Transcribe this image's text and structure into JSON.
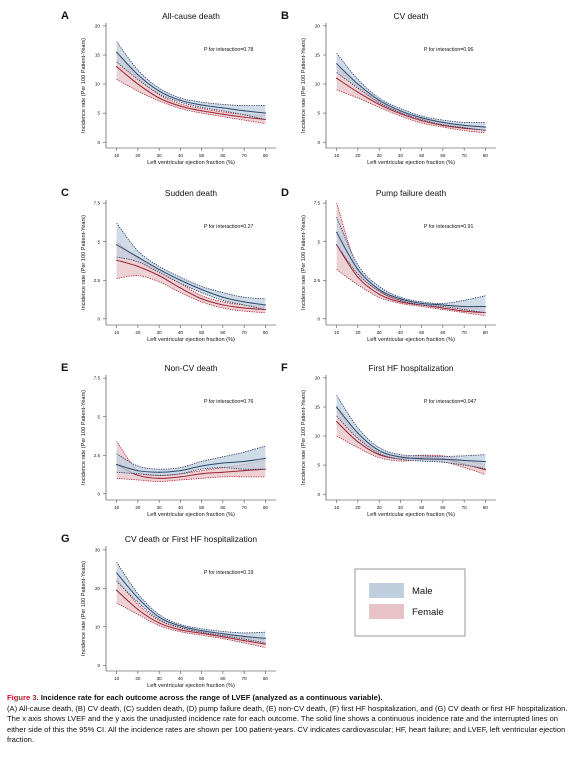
{
  "colors": {
    "male_line": "#2b4a6e",
    "male_band": "#bfcfdd",
    "male_band_edge": "#1f2f5a",
    "female_line": "#9b2332",
    "female_band": "#e7c3c7",
    "female_band_edge": "#b01d2e"
  },
  "legend": {
    "male": "Male",
    "female": "Female"
  },
  "caption": {
    "label": "Figure 3.",
    "title": "Incidence rate for each outcome across the range of LVEF (analyzed as a continuous variable).",
    "body": "(A) All-cause death, (B) CV death, (C) sudden death, (D) pump failure death, (E) non-CV death, (F) first HF hospitalization, and (G) CV death or first HF hospitalization. The x axis shows LVEF and the y axis the unadjusted incidence rate for each outcome. The solid line shows a continuous incidence rate and the interrupted lines on either side of this the 95% CI. All the incidence rates are shown per 100 patient-years. CV indicates cardiovascular; HF, heart failure; and LVEF, left ventricular ejection fraction."
  },
  "chart_data": [
    {
      "type": "area",
      "panel": "A",
      "title": "All-cause death",
      "xlabel": "Left ventricular ejection fraction (%)",
      "ylabel": "Incidence rate (Per 100 Patient-Years)",
      "annotation": "P for interaction=0.78",
      "xlim": [
        5,
        85
      ],
      "ylim": [
        -1,
        20.5
      ],
      "xticks": [
        10,
        20,
        30,
        40,
        50,
        60,
        70,
        80
      ],
      "yticks": [
        0,
        5,
        10,
        15,
        20
      ],
      "x": [
        10,
        20,
        30,
        40,
        50,
        60,
        70,
        80
      ],
      "series": [
        {
          "name": "Male",
          "values": [
            15.5,
            11.6,
            8.8,
            7.2,
            6.4,
            5.9,
            5.4,
            5.0
          ],
          "lower": [
            13.8,
            10.8,
            8.3,
            6.9,
            6.0,
            5.4,
            4.7,
            3.9
          ],
          "upper": [
            17.3,
            12.4,
            9.3,
            7.6,
            6.9,
            6.5,
            6.3,
            6.3
          ]
        },
        {
          "name": "Female",
          "values": [
            13.0,
            10.0,
            7.6,
            6.2,
            5.4,
            4.8,
            4.3,
            3.9
          ],
          "lower": [
            10.8,
            8.8,
            7.1,
            5.8,
            5.0,
            4.4,
            3.8,
            3.2
          ],
          "upper": [
            15.5,
            11.2,
            8.2,
            6.6,
            5.8,
            5.2,
            4.8,
            4.6
          ]
        }
      ]
    },
    {
      "type": "area",
      "panel": "B",
      "title": "CV death",
      "xlabel": "Left ventricular ejection fraction (%)",
      "ylabel": "Incidence rate (Per 100 Patient-Years)",
      "annotation": "P for interaction=0.96",
      "xlim": [
        5,
        85
      ],
      "ylim": [
        -1,
        20.5
      ],
      "xticks": [
        10,
        20,
        30,
        40,
        50,
        60,
        70,
        80
      ],
      "yticks": [
        0,
        5,
        10,
        15,
        20
      ],
      "x": [
        10,
        20,
        30,
        40,
        50,
        60,
        70,
        80
      ],
      "series": [
        {
          "name": "Male",
          "values": [
            13.5,
            10.0,
            7.2,
            5.4,
            4.2,
            3.4,
            2.9,
            2.6
          ],
          "lower": [
            12.0,
            9.3,
            6.8,
            5.1,
            3.9,
            3.0,
            2.5,
            2.0
          ],
          "upper": [
            15.3,
            10.8,
            7.6,
            5.8,
            4.5,
            3.8,
            3.4,
            3.4
          ]
        },
        {
          "name": "Female",
          "values": [
            11.0,
            8.6,
            6.5,
            4.9,
            3.7,
            2.9,
            2.4,
            2.1
          ],
          "lower": [
            9.0,
            7.6,
            6.0,
            4.5,
            3.3,
            2.6,
            2.0,
            1.6
          ],
          "upper": [
            13.0,
            9.6,
            7.0,
            5.3,
            4.1,
            3.3,
            2.9,
            2.7
          ]
        }
      ]
    },
    {
      "type": "area",
      "panel": "C",
      "title": "Sudden death",
      "xlabel": "Left ventricular ejection fraction (%)",
      "ylabel": "Incidence rate (Per 100 Patient-Years)",
      "annotation": "P for interaction=0.27",
      "xlim": [
        5,
        85
      ],
      "ylim": [
        -0.4,
        7.7
      ],
      "xticks": [
        10,
        20,
        30,
        40,
        50,
        60,
        70,
        80
      ],
      "yticks": [
        0,
        2.5,
        5,
        7.5
      ],
      "x": [
        10,
        20,
        30,
        40,
        50,
        60,
        70,
        80
      ],
      "series": [
        {
          "name": "Male",
          "values": [
            4.8,
            4.0,
            3.2,
            2.5,
            1.9,
            1.4,
            1.1,
            0.9
          ],
          "lower": [
            4.0,
            3.7,
            3.0,
            2.3,
            1.7,
            1.2,
            0.9,
            0.6
          ],
          "upper": [
            6.2,
            4.4,
            3.4,
            2.7,
            2.1,
            1.7,
            1.4,
            1.3
          ]
        },
        {
          "name": "Female",
          "values": [
            3.8,
            3.4,
            2.8,
            2.0,
            1.3,
            0.9,
            0.7,
            0.6
          ],
          "lower": [
            2.6,
            2.8,
            2.4,
            1.7,
            1.1,
            0.7,
            0.5,
            0.4
          ],
          "upper": [
            5.0,
            3.9,
            3.1,
            2.3,
            1.5,
            1.1,
            0.9,
            0.8
          ]
        }
      ]
    },
    {
      "type": "area",
      "panel": "D",
      "title": "Pump failure death",
      "xlabel": "Left ventricular ejection fraction (%)",
      "ylabel": "Incidence rate (Per 100 Patient-Years)",
      "annotation": "P for interaction=0.91",
      "xlim": [
        5,
        85
      ],
      "ylim": [
        -0.4,
        7.7
      ],
      "xticks": [
        10,
        20,
        30,
        40,
        50,
        60,
        70,
        80
      ],
      "yticks": [
        0,
        2.5,
        5,
        7.5
      ],
      "x": [
        10,
        20,
        30,
        40,
        50,
        60,
        70,
        80
      ],
      "series": [
        {
          "name": "Male",
          "values": [
            5.6,
            3.2,
            1.9,
            1.3,
            1.0,
            0.9,
            0.8,
            0.8
          ],
          "lower": [
            4.8,
            2.9,
            1.8,
            1.2,
            0.9,
            0.8,
            0.6,
            0.4
          ],
          "upper": [
            6.6,
            3.5,
            2.1,
            1.4,
            1.1,
            1.0,
            1.2,
            1.5
          ]
        },
        {
          "name": "Female",
          "values": [
            4.8,
            2.7,
            1.6,
            1.1,
            0.9,
            0.7,
            0.5,
            0.4
          ],
          "lower": [
            3.2,
            2.2,
            1.4,
            1.0,
            0.8,
            0.6,
            0.4,
            0.2
          ],
          "upper": [
            7.5,
            3.2,
            1.8,
            1.2,
            1.0,
            0.9,
            0.7,
            0.7
          ]
        }
      ]
    },
    {
      "type": "area",
      "panel": "E",
      "title": "Non-CV death",
      "xlabel": "Left ventricular ejection fraction (%)",
      "ylabel": "Incidence rate (Per 100 Patient-Years)",
      "annotation": "P for interaction=0.76",
      "xlim": [
        5,
        85
      ],
      "ylim": [
        -0.4,
        7.7
      ],
      "xticks": [
        10,
        20,
        30,
        40,
        50,
        60,
        70,
        80
      ],
      "yticks": [
        0,
        2.5,
        5,
        7.5
      ],
      "x": [
        10,
        20,
        30,
        40,
        50,
        60,
        70,
        80
      ],
      "series": [
        {
          "name": "Male",
          "values": [
            1.9,
            1.5,
            1.4,
            1.5,
            1.8,
            2.0,
            2.1,
            2.3
          ],
          "lower": [
            1.4,
            1.3,
            1.2,
            1.3,
            1.6,
            1.7,
            1.6,
            1.6
          ],
          "upper": [
            2.6,
            1.8,
            1.6,
            1.7,
            2.1,
            2.4,
            2.7,
            3.1
          ]
        },
        {
          "name": "Female",
          "values": [
            1.9,
            1.2,
            1.0,
            1.1,
            1.3,
            1.4,
            1.5,
            1.6
          ],
          "lower": [
            1.0,
            0.9,
            0.8,
            0.9,
            1.0,
            1.1,
            1.1,
            1.1
          ],
          "upper": [
            3.4,
            1.5,
            1.2,
            1.3,
            1.5,
            1.7,
            1.9,
            2.2
          ]
        }
      ]
    },
    {
      "type": "area",
      "panel": "F",
      "title": "First HF hospitalization",
      "xlabel": "Left ventricular ejection fraction (%)",
      "ylabel": "Incidence rate (Per 100 Patient-Years)",
      "annotation": "P for interaction=0.047",
      "xlim": [
        5,
        85
      ],
      "ylim": [
        -1,
        20.5
      ],
      "xticks": [
        10,
        20,
        30,
        40,
        50,
        60,
        70,
        80
      ],
      "yticks": [
        0,
        5,
        10,
        15,
        20
      ],
      "x": [
        10,
        20,
        30,
        40,
        50,
        60,
        70,
        80
      ],
      "series": [
        {
          "name": "Male",
          "values": [
            15.0,
            10.5,
            7.5,
            6.4,
            6.1,
            6.0,
            5.8,
            5.6
          ],
          "lower": [
            13.4,
            9.6,
            7.0,
            6.0,
            5.7,
            5.5,
            5.0,
            4.4
          ],
          "upper": [
            17.0,
            11.4,
            8.0,
            6.8,
            6.6,
            6.5,
            6.6,
            6.8
          ]
        },
        {
          "name": "Female",
          "values": [
            12.5,
            9.0,
            6.8,
            6.1,
            6.3,
            6.1,
            5.2,
            4.2
          ],
          "lower": [
            10.0,
            8.0,
            6.3,
            5.7,
            5.9,
            5.6,
            4.6,
            3.4
          ],
          "upper": [
            14.8,
            10.0,
            7.3,
            6.5,
            6.7,
            6.6,
            5.8,
            5.1
          ]
        }
      ]
    },
    {
      "type": "area",
      "panel": "G",
      "title": "CV death or First HF hospitalization",
      "xlabel": "Left ventricular ejection fraction (%)",
      "ylabel": "Incidence rate (Per 100 Patient-Years)",
      "annotation": "P for interaction=0.19",
      "xlim": [
        5,
        85
      ],
      "ylim": [
        -1.5,
        31
      ],
      "xticks": [
        10,
        20,
        30,
        40,
        50,
        60,
        70,
        80
      ],
      "yticks": [
        0,
        10,
        20,
        30
      ],
      "x": [
        10,
        20,
        30,
        40,
        50,
        60,
        70,
        80
      ],
      "series": [
        {
          "name": "Male",
          "values": [
            24.0,
            17.5,
            12.5,
            10.2,
            9.0,
            8.2,
            7.5,
            7.0
          ],
          "lower": [
            21.8,
            16.4,
            11.9,
            9.8,
            8.6,
            7.7,
            6.8,
            5.8
          ],
          "upper": [
            26.8,
            18.6,
            13.2,
            10.6,
            9.5,
            8.8,
            8.4,
            8.6
          ]
        },
        {
          "name": "Female",
          "values": [
            19.5,
            14.5,
            11.0,
            9.2,
            8.3,
            7.4,
            6.4,
            5.5
          ],
          "lower": [
            16.2,
            13.2,
            10.3,
            8.7,
            7.8,
            6.9,
            5.8,
            4.6
          ],
          "upper": [
            22.5,
            15.8,
            11.7,
            9.7,
            8.8,
            8.0,
            7.2,
            6.6
          ]
        }
      ]
    }
  ]
}
